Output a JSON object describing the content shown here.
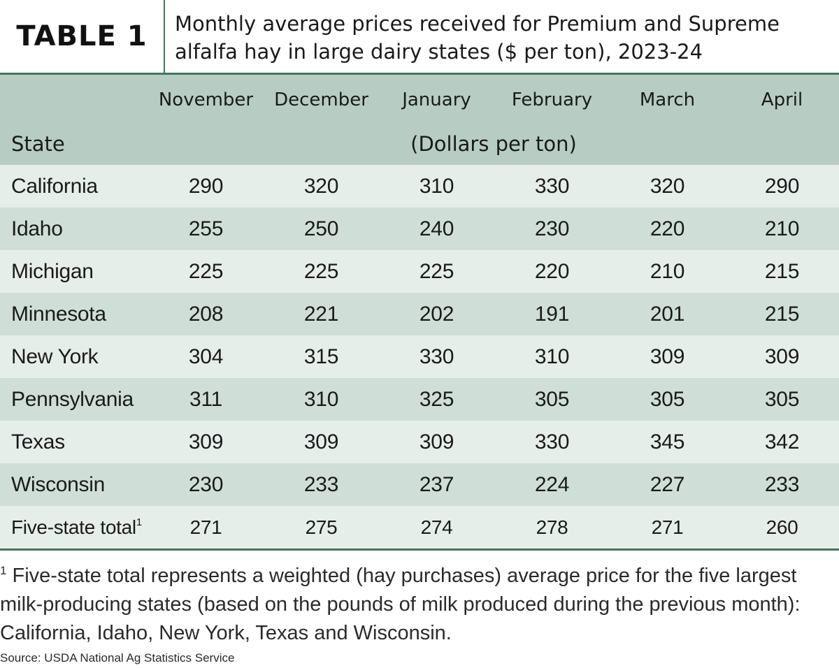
{
  "table_label": "TABLE 1",
  "title": "Monthly average prices received for Premium and Supreme alfalfa hay in large dairy states ($ per ton), 2023-24",
  "chart_data": {
    "type": "table",
    "title": "Monthly average prices received for Premium and Supreme alfalfa hay in large dairy states ($ per ton), 2023-24",
    "row_header": "State",
    "units_label": "(Dollars per ton)",
    "columns": [
      "November",
      "December",
      "January",
      "February",
      "March",
      "April"
    ],
    "rows": [
      {
        "state": "California",
        "values": [
          290,
          320,
          310,
          330,
          320,
          290
        ]
      },
      {
        "state": "Idaho",
        "values": [
          255,
          250,
          240,
          230,
          220,
          210
        ]
      },
      {
        "state": "Michigan",
        "values": [
          225,
          225,
          225,
          220,
          210,
          215
        ]
      },
      {
        "state": "Minnesota",
        "values": [
          208,
          221,
          202,
          191,
          201,
          215
        ]
      },
      {
        "state": "New York",
        "values": [
          304,
          315,
          330,
          310,
          309,
          309
        ]
      },
      {
        "state": "Pennsylvania",
        "values": [
          311,
          310,
          325,
          305,
          305,
          305
        ]
      },
      {
        "state": "Texas",
        "values": [
          309,
          309,
          309,
          330,
          345,
          342
        ]
      },
      {
        "state": "Wisconsin",
        "values": [
          230,
          233,
          237,
          224,
          227,
          233
        ]
      }
    ],
    "total_row": {
      "state": "Five-state total",
      "footnote_mark": "1",
      "values": [
        271,
        275,
        274,
        278,
        271,
        260
      ]
    }
  },
  "footnote": {
    "mark": "1",
    "text": " Five-state total represents a weighted (hay purchases) average price for the five largest milk-producing states (based on the pounds of milk produced during the previous month): California, Idaho, New York, Texas and Wisconsin."
  },
  "source": "Source: USDA National Ag Statistics Service",
  "colors": {
    "accent_green": "#3d7a5a",
    "header_bg": "#b7cdc4",
    "row_light": "#e6eeea",
    "row_dark": "#cfdfd7"
  }
}
